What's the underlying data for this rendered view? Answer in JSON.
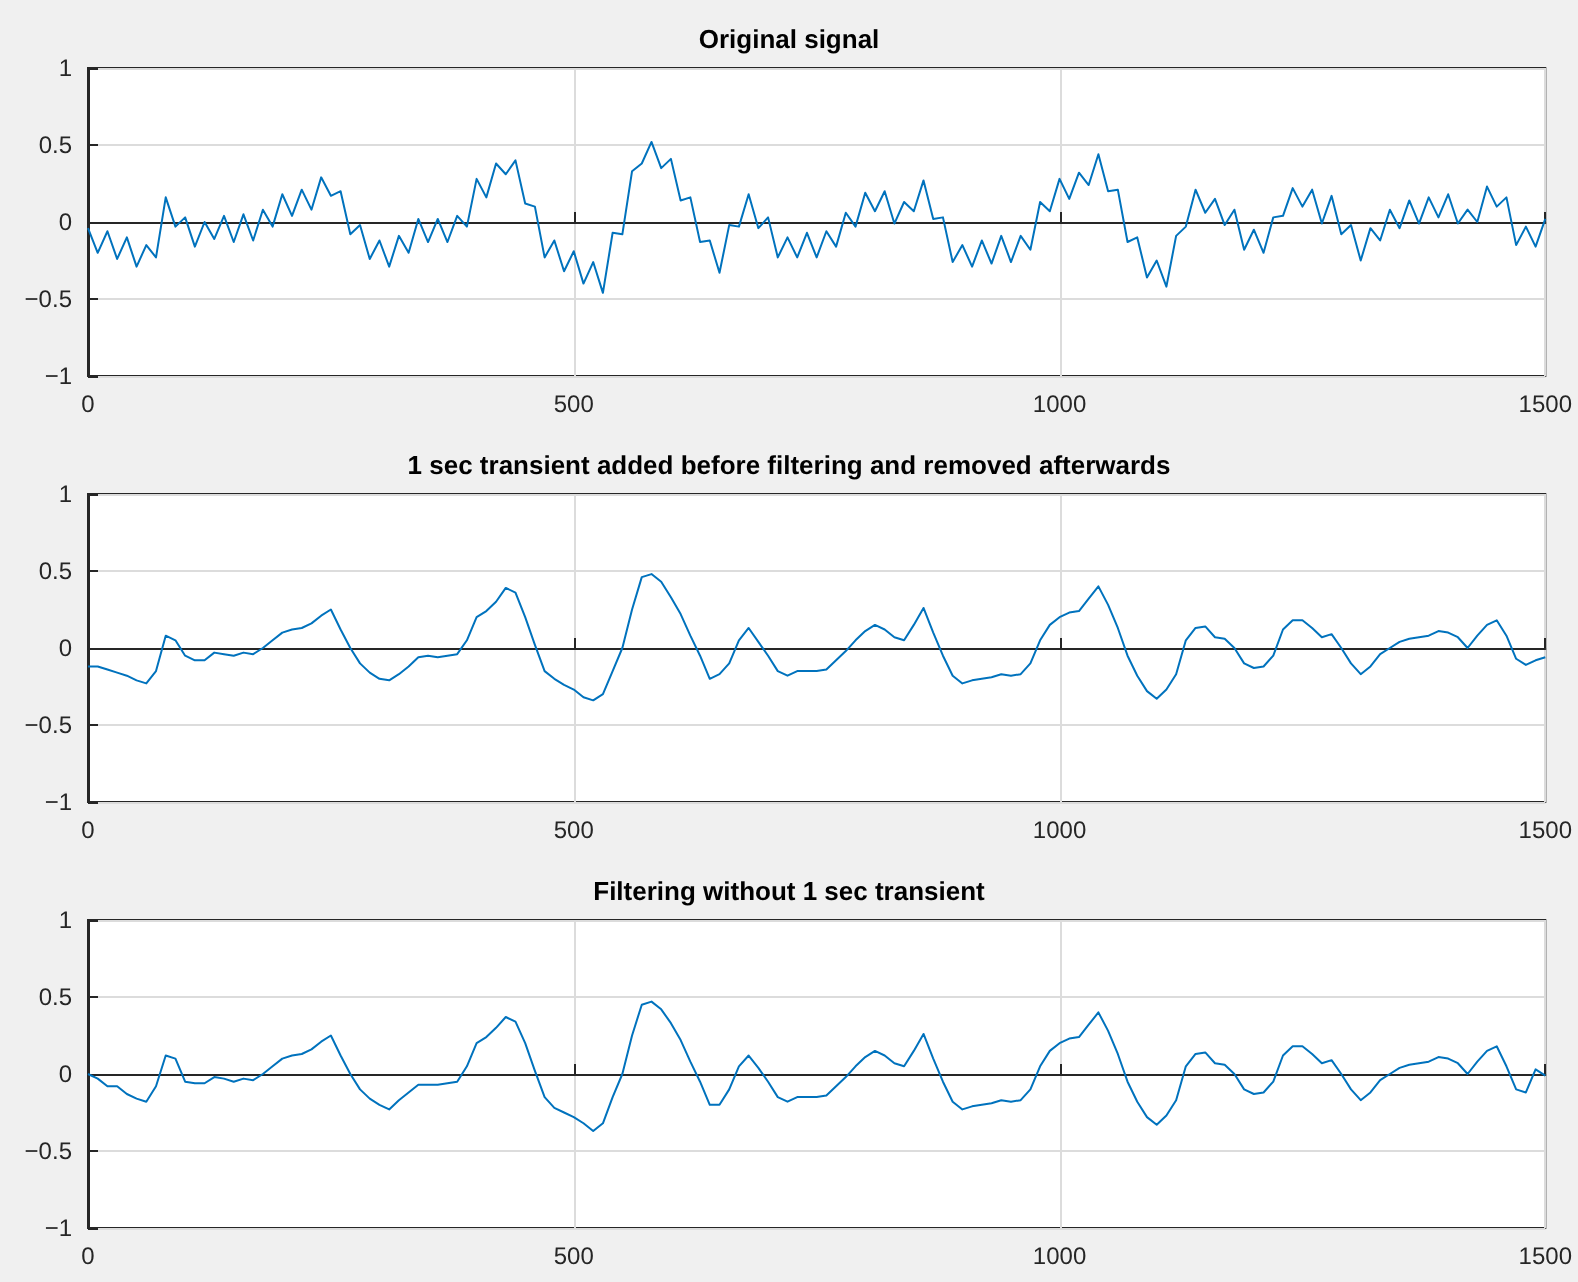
{
  "chart_data": [
    {
      "type": "line",
      "title": "Original signal",
      "grid": true,
      "xlim": [
        0,
        1500
      ],
      "xticks": [
        0,
        500,
        1000,
        1500
      ],
      "ylim": [
        -1,
        1
      ],
      "yticks": [
        -1,
        -0.5,
        0,
        0.5,
        1
      ],
      "x": [
        0,
        10,
        20,
        30,
        40,
        50,
        60,
        70,
        80,
        90,
        100,
        110,
        120,
        130,
        140,
        150,
        160,
        170,
        180,
        190,
        200,
        210,
        220,
        230,
        240,
        250,
        260,
        270,
        280,
        290,
        300,
        310,
        320,
        330,
        340,
        350,
        360,
        370,
        380,
        390,
        400,
        410,
        420,
        430,
        440,
        450,
        460,
        470,
        480,
        490,
        500,
        510,
        520,
        530,
        540,
        550,
        560,
        570,
        580,
        590,
        600,
        610,
        620,
        630,
        640,
        650,
        660,
        670,
        680,
        690,
        700,
        710,
        720,
        730,
        740,
        750,
        760,
        770,
        780,
        790,
        800,
        810,
        820,
        830,
        840,
        850,
        860,
        870,
        880,
        890,
        900,
        910,
        920,
        930,
        940,
        950,
        960,
        970,
        980,
        990,
        1000,
        1010,
        1020,
        1030,
        1040,
        1050,
        1060,
        1070,
        1080,
        1090,
        1100,
        1110,
        1120,
        1130,
        1140,
        1150,
        1160,
        1170,
        1180,
        1190,
        1200,
        1210,
        1220,
        1230,
        1240,
        1250,
        1260,
        1270,
        1280,
        1290,
        1300,
        1310,
        1320,
        1330,
        1340,
        1350,
        1360,
        1370,
        1380,
        1390,
        1400,
        1410,
        1420,
        1430,
        1440,
        1450,
        1460,
        1470,
        1480,
        1490,
        1500
      ],
      "series": [
        {
          "color": "#0072bd",
          "values": [
            -0.04,
            -0.2,
            -0.06,
            -0.24,
            -0.1,
            -0.29,
            -0.15,
            -0.23,
            0.16,
            -0.03,
            0.03,
            -0.16,
            0.0,
            -0.11,
            0.04,
            -0.13,
            0.05,
            -0.12,
            0.08,
            -0.03,
            0.18,
            0.04,
            0.21,
            0.08,
            0.29,
            0.17,
            0.2,
            -0.08,
            -0.02,
            -0.24,
            -0.12,
            -0.29,
            -0.09,
            -0.2,
            0.02,
            -0.13,
            0.02,
            -0.13,
            0.04,
            -0.03,
            0.28,
            0.16,
            0.38,
            0.31,
            0.4,
            0.12,
            0.1,
            -0.23,
            -0.12,
            -0.32,
            -0.19,
            -0.4,
            -0.26,
            -0.46,
            -0.07,
            -0.08,
            0.33,
            0.38,
            0.52,
            0.35,
            0.41,
            0.14,
            0.16,
            -0.13,
            -0.12,
            -0.33,
            -0.02,
            -0.03,
            0.18,
            -0.04,
            0.03,
            -0.23,
            -0.1,
            -0.23,
            -0.07,
            -0.23,
            -0.06,
            -0.16,
            0.06,
            -0.03,
            0.19,
            0.07,
            0.2,
            -0.01,
            0.13,
            0.07,
            0.27,
            0.02,
            0.03,
            -0.26,
            -0.15,
            -0.29,
            -0.12,
            -0.27,
            -0.09,
            -0.26,
            -0.09,
            -0.18,
            0.13,
            0.07,
            0.28,
            0.15,
            0.32,
            0.24,
            0.44,
            0.2,
            0.21,
            -0.13,
            -0.1,
            -0.36,
            -0.25,
            -0.42,
            -0.09,
            -0.03,
            0.21,
            0.06,
            0.15,
            -0.02,
            0.08,
            -0.18,
            -0.05,
            -0.2,
            0.03,
            0.04,
            0.22,
            0.1,
            0.21,
            -0.01,
            0.17,
            -0.08,
            -0.02,
            -0.25,
            -0.04,
            -0.12,
            0.08,
            -0.04,
            0.14,
            -0.01,
            0.16,
            0.03,
            0.18,
            -0.01,
            0.08,
            0.0,
            0.23,
            0.1,
            0.16,
            -0.15,
            -0.03,
            -0.16,
            0.02
          ]
        }
      ]
    },
    {
      "type": "line",
      "title": "1 sec transient added before filtering and removed afterwards",
      "grid": true,
      "xlim": [
        0,
        1500
      ],
      "xticks": [
        0,
        500,
        1000,
        1500
      ],
      "ylim": [
        -1,
        1
      ],
      "yticks": [
        -1,
        -0.5,
        0,
        0.5,
        1
      ],
      "x": [
        0,
        10,
        20,
        30,
        40,
        50,
        60,
        70,
        80,
        90,
        100,
        110,
        120,
        130,
        140,
        150,
        160,
        170,
        180,
        190,
        200,
        210,
        220,
        230,
        240,
        250,
        260,
        270,
        280,
        290,
        300,
        310,
        320,
        330,
        340,
        350,
        360,
        370,
        380,
        390,
        400,
        410,
        420,
        430,
        440,
        450,
        460,
        470,
        480,
        490,
        500,
        510,
        520,
        530,
        540,
        550,
        560,
        570,
        580,
        590,
        600,
        610,
        620,
        630,
        640,
        650,
        660,
        670,
        680,
        690,
        700,
        710,
        720,
        730,
        740,
        750,
        760,
        770,
        780,
        790,
        800,
        810,
        820,
        830,
        840,
        850,
        860,
        870,
        880,
        890,
        900,
        910,
        920,
        930,
        940,
        950,
        960,
        970,
        980,
        990,
        1000,
        1010,
        1020,
        1030,
        1040,
        1050,
        1060,
        1070,
        1080,
        1090,
        1100,
        1110,
        1120,
        1130,
        1140,
        1150,
        1160,
        1170,
        1180,
        1190,
        1200,
        1210,
        1220,
        1230,
        1240,
        1250,
        1260,
        1270,
        1280,
        1290,
        1300,
        1310,
        1320,
        1330,
        1340,
        1350,
        1360,
        1370,
        1380,
        1390,
        1400,
        1410,
        1420,
        1430,
        1440,
        1450,
        1460,
        1470,
        1480,
        1490,
        1500
      ],
      "series": [
        {
          "color": "#0072bd",
          "values": [
            -0.12,
            -0.12,
            -0.14,
            -0.16,
            -0.18,
            -0.21,
            -0.23,
            -0.15,
            0.08,
            0.05,
            -0.05,
            -0.08,
            -0.08,
            -0.03,
            -0.04,
            -0.05,
            -0.03,
            -0.04,
            0.0,
            0.05,
            0.1,
            0.12,
            0.13,
            0.16,
            0.21,
            0.25,
            0.12,
            0.0,
            -0.1,
            -0.16,
            -0.2,
            -0.21,
            -0.17,
            -0.12,
            -0.06,
            -0.05,
            -0.06,
            -0.05,
            -0.04,
            0.05,
            0.2,
            0.24,
            0.3,
            0.39,
            0.36,
            0.2,
            0.02,
            -0.15,
            -0.2,
            -0.24,
            -0.27,
            -0.32,
            -0.34,
            -0.3,
            -0.15,
            0.0,
            0.25,
            0.46,
            0.48,
            0.43,
            0.33,
            0.22,
            0.08,
            -0.05,
            -0.2,
            -0.17,
            -0.1,
            0.05,
            0.13,
            0.04,
            -0.05,
            -0.15,
            -0.18,
            -0.15,
            -0.15,
            -0.15,
            -0.14,
            -0.08,
            -0.02,
            0.05,
            0.11,
            0.15,
            0.12,
            0.07,
            0.05,
            0.15,
            0.26,
            0.1,
            -0.05,
            -0.18,
            -0.23,
            -0.21,
            -0.2,
            -0.19,
            -0.17,
            -0.18,
            -0.17,
            -0.1,
            0.05,
            0.15,
            0.2,
            0.23,
            0.24,
            0.32,
            0.4,
            0.28,
            0.13,
            -0.05,
            -0.18,
            -0.28,
            -0.33,
            -0.27,
            -0.17,
            0.05,
            0.13,
            0.14,
            0.07,
            0.06,
            0.0,
            -0.1,
            -0.13,
            -0.12,
            -0.05,
            0.12,
            0.18,
            0.18,
            0.13,
            0.07,
            0.09,
            0.0,
            -0.1,
            -0.17,
            -0.12,
            -0.04,
            0.0,
            0.04,
            0.06,
            0.07,
            0.08,
            0.11,
            0.1,
            0.07,
            0.0,
            0.08,
            0.15,
            0.18,
            0.08,
            -0.07,
            -0.11,
            -0.08,
            -0.06
          ]
        }
      ]
    },
    {
      "type": "line",
      "title": "Filtering without 1 sec transient",
      "grid": true,
      "xlim": [
        0,
        1500
      ],
      "xticks": [
        0,
        500,
        1000,
        1500
      ],
      "ylim": [
        -1,
        1
      ],
      "yticks": [
        -1,
        -0.5,
        0,
        0.5,
        1
      ],
      "x": [
        0,
        10,
        20,
        30,
        40,
        50,
        60,
        70,
        80,
        90,
        100,
        110,
        120,
        130,
        140,
        150,
        160,
        170,
        180,
        190,
        200,
        210,
        220,
        230,
        240,
        250,
        260,
        270,
        280,
        290,
        300,
        310,
        320,
        330,
        340,
        350,
        360,
        370,
        380,
        390,
        400,
        410,
        420,
        430,
        440,
        450,
        460,
        470,
        480,
        490,
        500,
        510,
        520,
        530,
        540,
        550,
        560,
        570,
        580,
        590,
        600,
        610,
        620,
        630,
        640,
        650,
        660,
        670,
        680,
        690,
        700,
        710,
        720,
        730,
        740,
        750,
        760,
        770,
        780,
        790,
        800,
        810,
        820,
        830,
        840,
        850,
        860,
        870,
        880,
        890,
        900,
        910,
        920,
        930,
        940,
        950,
        960,
        970,
        980,
        990,
        1000,
        1010,
        1020,
        1030,
        1040,
        1050,
        1060,
        1070,
        1080,
        1090,
        1100,
        1110,
        1120,
        1130,
        1140,
        1150,
        1160,
        1170,
        1180,
        1190,
        1200,
        1210,
        1220,
        1230,
        1240,
        1250,
        1260,
        1270,
        1280,
        1290,
        1300,
        1310,
        1320,
        1330,
        1340,
        1350,
        1360,
        1370,
        1380,
        1390,
        1400,
        1410,
        1420,
        1430,
        1440,
        1450,
        1460,
        1470,
        1480,
        1490,
        1500
      ],
      "series": [
        {
          "color": "#0072bd",
          "values": [
            0.0,
            -0.03,
            -0.08,
            -0.08,
            -0.13,
            -0.16,
            -0.18,
            -0.08,
            0.12,
            0.1,
            -0.05,
            -0.06,
            -0.06,
            -0.02,
            -0.03,
            -0.05,
            -0.03,
            -0.04,
            0.0,
            0.05,
            0.1,
            0.12,
            0.13,
            0.16,
            0.21,
            0.25,
            0.12,
            0.0,
            -0.1,
            -0.16,
            -0.2,
            -0.23,
            -0.17,
            -0.12,
            -0.07,
            -0.07,
            -0.07,
            -0.06,
            -0.05,
            0.05,
            0.2,
            0.24,
            0.3,
            0.37,
            0.34,
            0.2,
            0.02,
            -0.15,
            -0.22,
            -0.25,
            -0.28,
            -0.32,
            -0.37,
            -0.32,
            -0.15,
            0.0,
            0.25,
            0.45,
            0.47,
            0.42,
            0.33,
            0.22,
            0.08,
            -0.05,
            -0.2,
            -0.2,
            -0.1,
            0.05,
            0.12,
            0.04,
            -0.05,
            -0.15,
            -0.18,
            -0.15,
            -0.15,
            -0.15,
            -0.14,
            -0.08,
            -0.02,
            0.05,
            0.11,
            0.15,
            0.12,
            0.07,
            0.05,
            0.15,
            0.26,
            0.1,
            -0.05,
            -0.18,
            -0.23,
            -0.21,
            -0.2,
            -0.19,
            -0.17,
            -0.18,
            -0.17,
            -0.1,
            0.05,
            0.15,
            0.2,
            0.23,
            0.24,
            0.32,
            0.4,
            0.28,
            0.13,
            -0.05,
            -0.18,
            -0.28,
            -0.33,
            -0.27,
            -0.17,
            0.05,
            0.13,
            0.14,
            0.07,
            0.06,
            0.0,
            -0.1,
            -0.13,
            -0.12,
            -0.05,
            0.12,
            0.18,
            0.18,
            0.13,
            0.07,
            0.09,
            0.0,
            -0.1,
            -0.17,
            -0.12,
            -0.04,
            0.0,
            0.04,
            0.06,
            0.07,
            0.08,
            0.11,
            0.1,
            0.07,
            0.0,
            0.08,
            0.15,
            0.18,
            0.05,
            -0.1,
            -0.12,
            0.03,
            -0.01
          ]
        }
      ]
    }
  ]
}
